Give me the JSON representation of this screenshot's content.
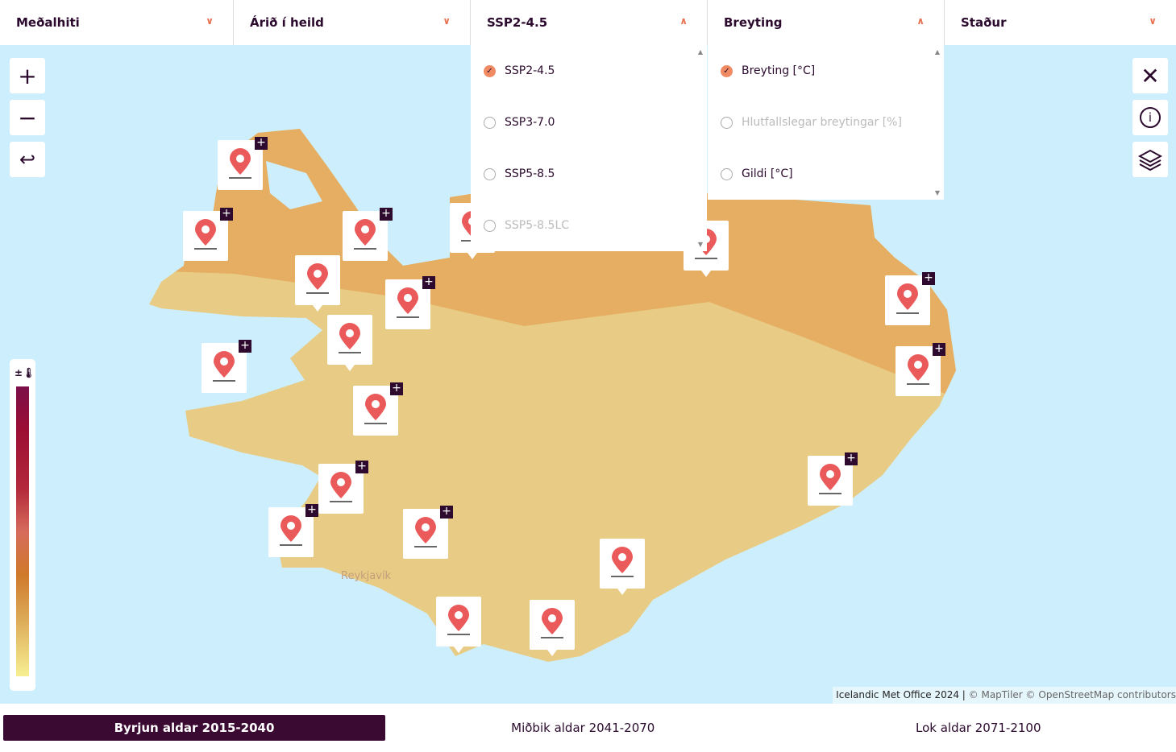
{
  "filters": [
    {
      "label": "Meðalhiti",
      "icon": "chevron-down-icon"
    },
    {
      "label": "Árið í heild",
      "icon": "chevron-down-icon"
    },
    {
      "label": "SSP2-4.5",
      "icon": "chevron-up-icon"
    },
    {
      "label": "Breyting",
      "icon": "chevron-up-icon"
    },
    {
      "label": "Staður",
      "icon": "chevron-down-icon"
    }
  ],
  "scenario_dropdown": {
    "options": [
      {
        "label": "SSP2-4.5",
        "checked": true,
        "disabled": false
      },
      {
        "label": "SSP3-7.0",
        "checked": false,
        "disabled": false
      },
      {
        "label": "SSP5-8.5",
        "checked": false,
        "disabled": false
      },
      {
        "label": "SSP5-8.5LC",
        "checked": false,
        "disabled": true
      }
    ]
  },
  "change_dropdown": {
    "options": [
      {
        "label": "Breyting [°C]",
        "checked": true,
        "disabled": false
      },
      {
        "label": "Hlutfallslegar breytingar [%]",
        "checked": false,
        "disabled": true
      },
      {
        "label": "Gildi [°C]",
        "checked": false,
        "disabled": false
      }
    ]
  },
  "map": {
    "city_label": "Reykjavík",
    "legend_icon": "±🌡",
    "legend_colors": [
      "#7b0f4a",
      "#9c0e34",
      "#d66b5b",
      "#cf7a2a",
      "#dca957",
      "#f7ef92"
    ],
    "land_color": "#e8cc85",
    "north_region_color": "#e5ae62",
    "sea_color": "#cdeefc",
    "marker_color": "#ea5a5a"
  },
  "attribution": {
    "main": "Icelandic Met Office 2024 |",
    "rest": " © MapTiler © OpenStreetMap contributors"
  },
  "periods": [
    {
      "label": "Byrjun aldar 2015-2040",
      "active": true
    },
    {
      "label": "Miðbik aldar 2041-2070",
      "active": false
    },
    {
      "label": "Lok aldar 2071-2100",
      "active": false
    }
  ]
}
